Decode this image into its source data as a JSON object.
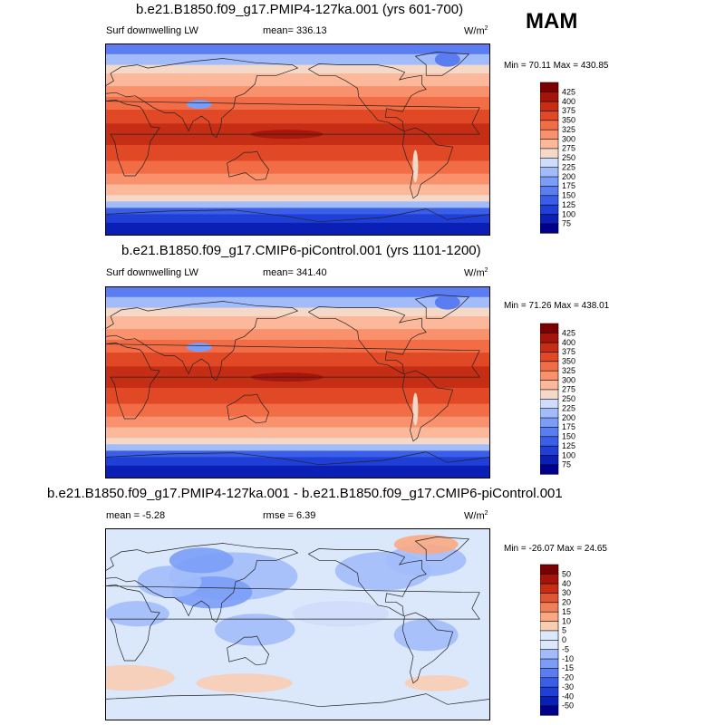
{
  "season": "MAM",
  "chart_data": [
    {
      "type": "heatmap",
      "title": "b.e21.B1850.f09_g17.PMIP4-127ka.001 (yrs 601-700)",
      "left_label": "Surf downwelling LW",
      "center_label": "mean= 336.13",
      "units": "W/m",
      "units_sup": "2",
      "minmax": "Min =  70.11 Max = 430.85",
      "colorbar": {
        "levels": [
          "75",
          "100",
          "125",
          "150",
          "175",
          "200",
          "225",
          "250",
          "275",
          "300",
          "325",
          "350",
          "375",
          "400",
          "425"
        ],
        "colors": [
          "#00008f",
          "#0a1fb5",
          "#1f3fd6",
          "#3a5ee8",
          "#5a7ef2",
          "#7b9df7",
          "#a2bcfb",
          "#cfdcfb",
          "#f5d9c8",
          "#fbb89a",
          "#f9926c",
          "#f26d46",
          "#e14926",
          "#c52d14",
          "#a5140a",
          "#7d0000"
        ]
      }
    },
    {
      "type": "heatmap",
      "title": "b.e21.B1850.f09_g17.CMIP6-piControl.001 (yrs 1101-1200)",
      "left_label": "Surf downwelling LW",
      "center_label": "mean= 341.40",
      "units": "W/m",
      "units_sup": "2",
      "minmax": "Min =  71.26 Max = 438.01",
      "colorbar": {
        "levels": [
          "75",
          "100",
          "125",
          "150",
          "175",
          "200",
          "225",
          "250",
          "275",
          "300",
          "325",
          "350",
          "375",
          "400",
          "425"
        ],
        "colors": [
          "#00008f",
          "#0a1fb5",
          "#1f3fd6",
          "#3a5ee8",
          "#5a7ef2",
          "#7b9df7",
          "#a2bcfb",
          "#cfdcfb",
          "#f5d9c8",
          "#fbb89a",
          "#f9926c",
          "#f26d46",
          "#e14926",
          "#c52d14",
          "#a5140a",
          "#7d0000"
        ]
      }
    },
    {
      "type": "heatmap",
      "title": "b.e21.B1850.f09_g17.PMIP4-127ka.001 - b.e21.B1850.f09_g17.CMIP6-piControl.001",
      "left_label": "mean =  -5.28",
      "center_label": "rmse =   6.39",
      "units": "W/m",
      "units_sup": "2",
      "minmax": "Min = -26.07 Max =  24.65",
      "colorbar": {
        "levels": [
          "-50",
          "-40",
          "-30",
          "-20",
          "-15",
          "-10",
          "-5",
          "0",
          "5",
          "10",
          "15",
          "20",
          "30",
          "40",
          "50"
        ],
        "colors": [
          "#00008f",
          "#0a1fb5",
          "#1f3fd6",
          "#3a5ee8",
          "#5a7ef2",
          "#7b9df7",
          "#a2bcfb",
          "#dbe8fb",
          "#dbe8fb",
          "#f8cdb2",
          "#f9a882",
          "#f17f58",
          "#e05532",
          "#c52d14",
          "#a5140a",
          "#7d0000"
        ]
      }
    }
  ]
}
